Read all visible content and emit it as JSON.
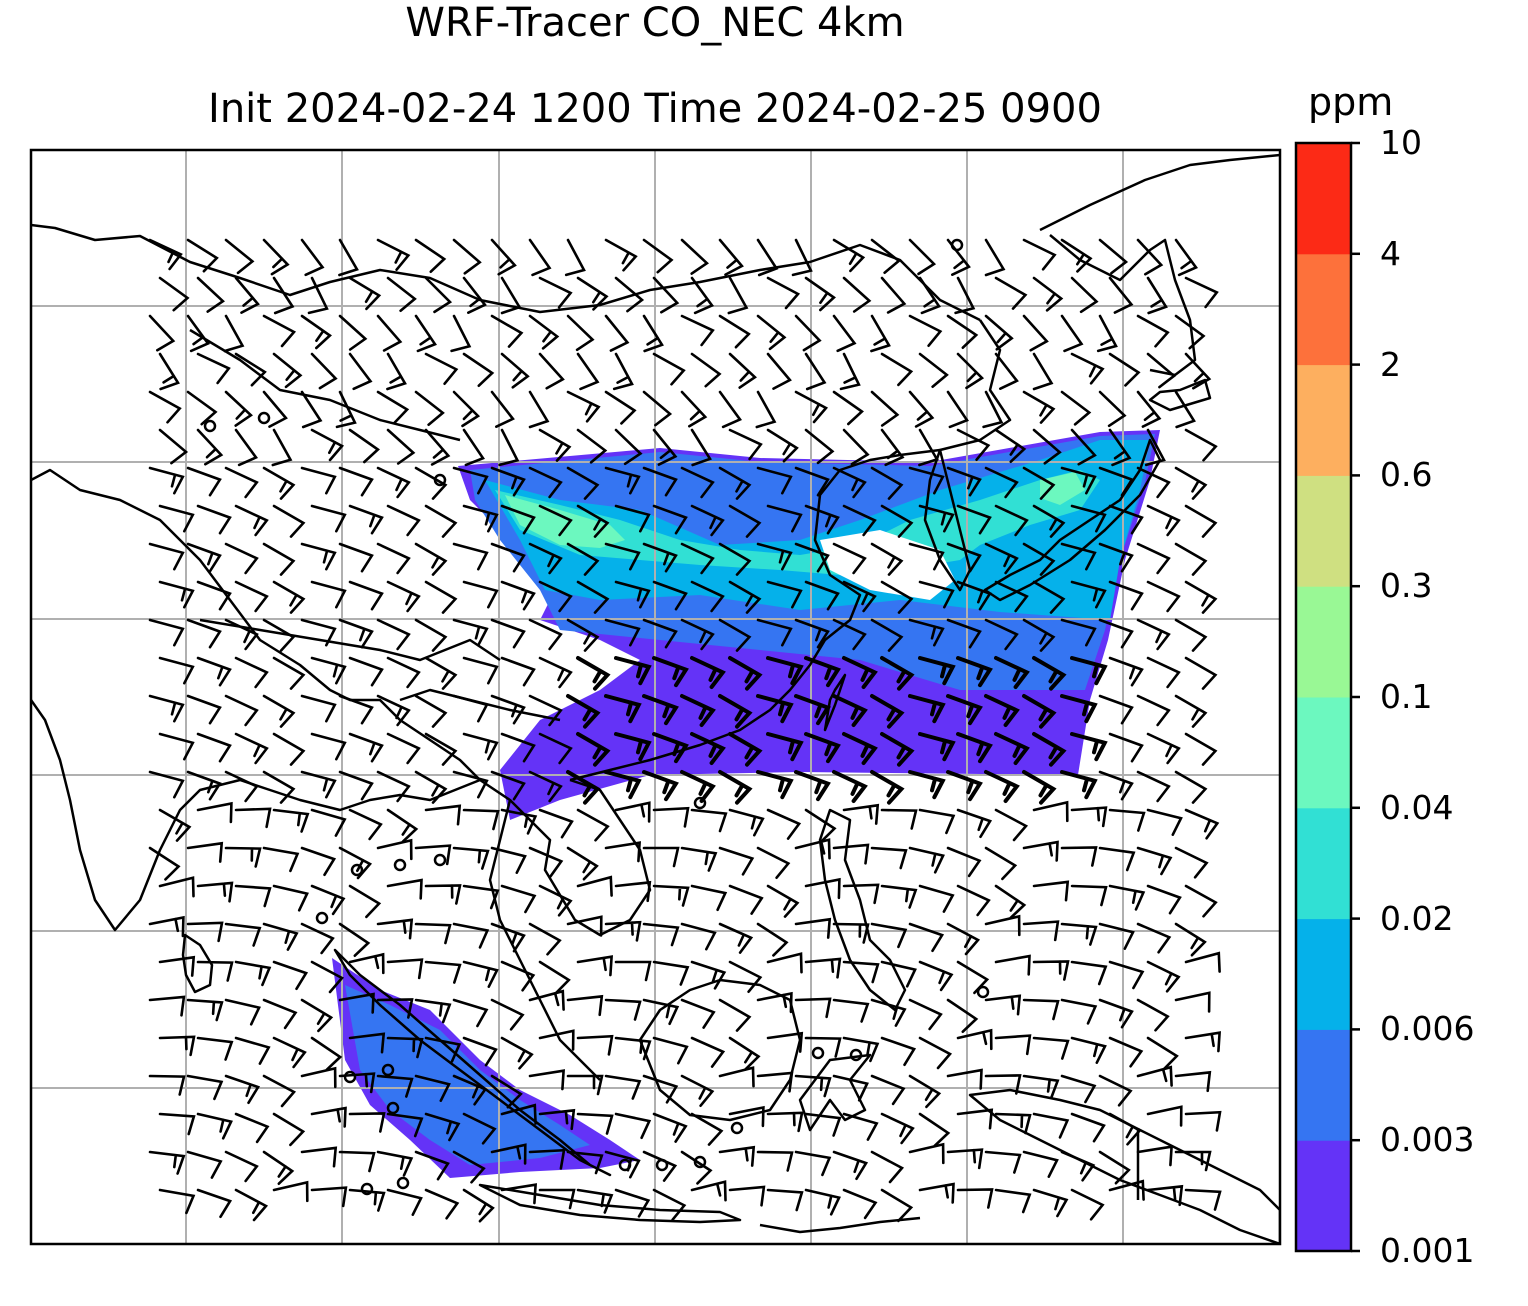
{
  "title_line1": "WRF-Tracer CO_NEC 4km",
  "title_line2": "Init 2024-02-24 1200 Time 2024-02-25 0900",
  "colorbar": {
    "unit": "ppm",
    "levels": [
      "0.001",
      "0.003",
      "0.006",
      "0.02",
      "0.04",
      "0.1",
      "0.3",
      "0.6",
      "2",
      "4",
      "10"
    ],
    "colors": [
      "#6433f7",
      "#3575f2",
      "#05b1ea",
      "#31e0d4",
      "#6cf8bf",
      "#99f895",
      "#cfe081",
      "#fdaf5f",
      "#fd713b",
      "#fc2a16"
    ]
  },
  "map": {
    "background": "#ffffff",
    "coastline_color": "#000000",
    "gridline_color": "#b0b0b0",
    "wind_barb_color": "#000000"
  }
}
